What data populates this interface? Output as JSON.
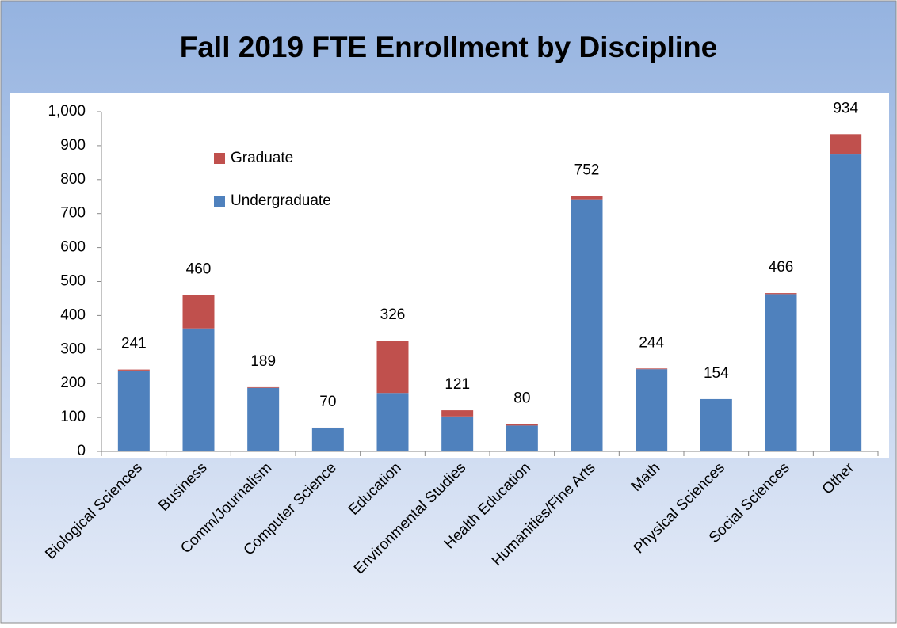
{
  "chart_data": {
    "type": "stacked_bar",
    "title": "Fall 2019 FTE Enrollment by Discipline",
    "categories": [
      "Biological Sciences",
      "Business",
      "Comm/Journalism",
      "Computer Science",
      "Education",
      "Environmental Studies",
      "Health Education",
      "Humanities/Fine Arts",
      "Math",
      "Physical Sciences",
      "Social Sciences",
      "Other"
    ],
    "series": [
      {
        "name": "Undergraduate",
        "color": "#4f81bd",
        "values": [
          238,
          362,
          187,
          69,
          172,
          103,
          76,
          742,
          242,
          154,
          463,
          874
        ]
      },
      {
        "name": "Graduate",
        "color": "#c0504d",
        "values": [
          3,
          98,
          2,
          1,
          154,
          18,
          4,
          10,
          2,
          0,
          3,
          60
        ]
      }
    ],
    "totals": [
      241,
      460,
      189,
      70,
      326,
      121,
      80,
      752,
      244,
      154,
      466,
      934
    ],
    "ylim": [
      0,
      1000
    ],
    "yticks": [
      0,
      100,
      200,
      300,
      400,
      500,
      600,
      700,
      800,
      900,
      {
        "value": 1000,
        "label": "1,000"
      }
    ],
    "legend": "upper left"
  }
}
